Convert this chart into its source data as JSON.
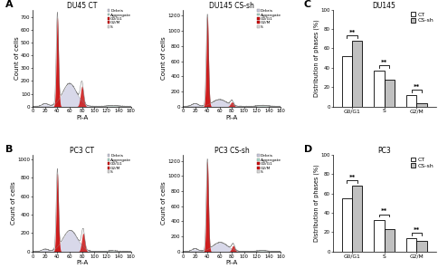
{
  "panel_A_title1": "DU45 CT",
  "panel_A_title2": "DU145 CS-sh",
  "panel_B_title1": "PC3 CT",
  "panel_B_title2": "PC3 CS-sh",
  "panel_C_title": "DU145",
  "panel_D_title": "PC3",
  "xlabel": "PI-A",
  "ylabel_flow": "Count of cells",
  "ylabel_bar": "Distribution of phases (%)",
  "xticks_flow": [
    0,
    20,
    40,
    60,
    80,
    100,
    120,
    140,
    160
  ],
  "flow_yticks_A1": [
    0,
    100,
    200,
    300,
    400,
    500,
    600,
    700
  ],
  "flow_yticks_A2": [
    0,
    200,
    400,
    600,
    800,
    1000,
    1200
  ],
  "flow_yticks_B1": [
    0,
    200,
    400,
    600,
    800,
    1000
  ],
  "flow_yticks_B2": [
    0,
    200,
    400,
    600,
    800,
    1000,
    1200
  ],
  "bar_categories": [
    "G0/G1",
    "S",
    "G2/M"
  ],
  "C_CT": [
    52,
    37,
    12
  ],
  "C_CSsh": [
    68,
    28,
    3
  ],
  "D_CT": [
    55,
    33,
    14
  ],
  "D_CSsh": [
    68,
    23,
    11
  ],
  "bar_ylim": [
    0,
    100
  ],
  "bar_yticks": [
    0,
    20,
    40,
    60,
    80,
    100
  ],
  "CT_color": "#ffffff",
  "CSsh_color": "#c0c0c0",
  "bar_edge_color": "#000000",
  "significance_text": "**",
  "panel_labels": [
    "A",
    "B",
    "C",
    "D"
  ],
  "font_size": 5.0,
  "title_font_size": 5.5,
  "label_font_size": 5.0,
  "tick_font_size": 4.0,
  "sig_font_size": 5.0,
  "legend_flow_fontsize": 3.2,
  "legend_bar_fontsize": 4.5
}
